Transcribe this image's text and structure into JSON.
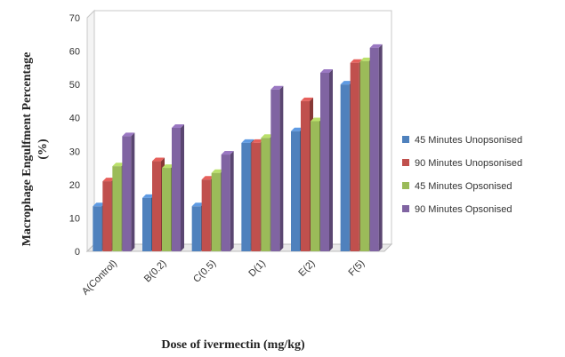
{
  "chart_data": {
    "type": "bar",
    "title": "",
    "xlabel": "Dose of ivermectin (mg/kg)",
    "ylabel": "Macrophage Engulfment Percentage",
    "ylabel_unit": "(%)",
    "categories": [
      "A(Control)",
      "B(0.2)",
      "C(0.5)",
      "D(1)",
      "E(2)",
      "F(5)"
    ],
    "ylim": [
      0,
      70
    ],
    "yticks": [
      0,
      10,
      20,
      30,
      40,
      50,
      60,
      70
    ],
    "grid": true,
    "legend_position": "right",
    "series": [
      {
        "name": "45 Minutes Unopsonised",
        "color": "#4f81bd",
        "values": [
          13.5,
          16,
          13.5,
          32.5,
          36,
          50
        ]
      },
      {
        "name": "90 Minutes Unopsonised",
        "color": "#c0504d",
        "values": [
          21,
          27,
          21.5,
          32.5,
          45,
          56.5
        ]
      },
      {
        "name": "45 Minutes Opsonised",
        "color": "#9bbb59",
        "values": [
          25.5,
          25,
          23.5,
          34,
          39,
          57
        ]
      },
      {
        "name": "90 Minutes Opsonised",
        "color": "#8064a2",
        "values": [
          34.5,
          37,
          29,
          48.5,
          53.5,
          61
        ]
      }
    ]
  }
}
